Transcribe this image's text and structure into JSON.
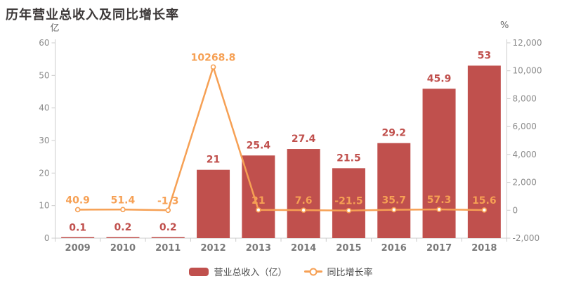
{
  "title": "历年营业总收入及同比增长率",
  "chart_data": {
    "type": "bar",
    "combo": "bar+line dual-axis",
    "categories": [
      "2009",
      "2010",
      "2011",
      "2012",
      "2013",
      "2014",
      "2015",
      "2016",
      "2017",
      "2018"
    ],
    "series": [
      {
        "name": "营业总收入（亿）",
        "type": "bar",
        "axis": "left",
        "values": [
          0.1,
          0.2,
          0.2,
          21,
          25.4,
          27.4,
          21.5,
          29.2,
          45.9,
          53
        ]
      },
      {
        "name": "同比增长率",
        "type": "line",
        "axis": "right",
        "values": [
          40.9,
          51.4,
          -1.3,
          10268.8,
          21,
          7.6,
          -21.5,
          35.7,
          57.3,
          15.6
        ]
      }
    ],
    "left_axis": {
      "unit": "亿",
      "min": 0,
      "max": 60,
      "ticks": [
        "0",
        "10",
        "20",
        "30",
        "40",
        "50",
        "60"
      ]
    },
    "right_axis": {
      "unit": "%",
      "min": -2000,
      "max": 12000,
      "ticks": [
        "-2,000",
        "0",
        "2,000",
        "4,000",
        "6,000",
        "8,000",
        "10,000",
        "12,000"
      ]
    },
    "grid": false,
    "legend_position": "bottom"
  },
  "colors": {
    "bar": "#c0504d",
    "bar_label": "#c0504d",
    "line": "#f6a054",
    "line_label": "#f6a054",
    "marker_fill": "#ffffff",
    "axis_line": "#cccccc",
    "tick_label": "#8c8c8c",
    "category_label": "#7a7a7a",
    "title": "#3d3939",
    "legend_text": "#4d4d4d",
    "unit_label": "#666666"
  }
}
